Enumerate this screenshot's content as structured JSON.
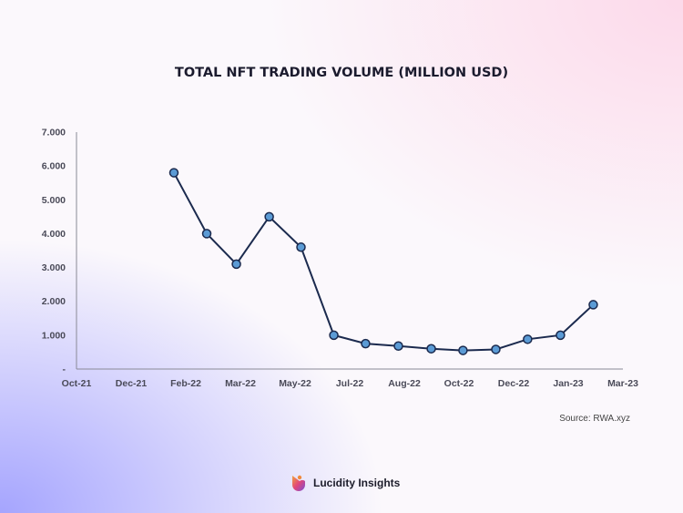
{
  "chart_data": {
    "type": "line",
    "title": "TOTAL NFT TRADING VOLUME (MILLION USD)",
    "x_ticks": [
      "Oct-21",
      "Dec-21",
      "Feb-22",
      "Mar-22",
      "May-22",
      "Jul-22",
      "Aug-22",
      "Oct-22",
      "Dec-22",
      "Jan-23",
      "Mar-23"
    ],
    "y_ticks": [
      "-",
      "1.000",
      "2.000",
      "3.000",
      "4.000",
      "5.000",
      "6.000",
      "7.000"
    ],
    "ylim": [
      0,
      7000
    ],
    "xlim": [
      "2021-10-01",
      "2023-03-01"
    ],
    "grid": false,
    "series": [
      {
        "color": "#1b2a4e",
        "marker_color": "#5b9bd5",
        "x": [
          "2022-01-01",
          "2022-02-01",
          "2022-03-01",
          "2022-04-01",
          "2022-05-01",
          "2022-06-01",
          "2022-07-01",
          "2022-08-01",
          "2022-09-01",
          "2022-10-01",
          "2022-11-01",
          "2022-12-01",
          "2023-01-01",
          "2023-02-01"
        ],
        "values": [
          5800,
          4000,
          3100,
          4500,
          3600,
          1000,
          750,
          680,
          600,
          550,
          580,
          880,
          1000,
          1900
        ]
      }
    ],
    "source": "Source: RWA.xyz"
  },
  "brand": {
    "name": "Lucidity Insights",
    "icon": "lucidity-logo-icon"
  }
}
